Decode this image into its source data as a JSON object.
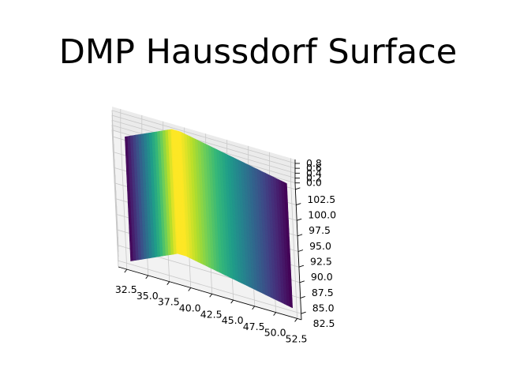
{
  "chart_data": {
    "type": "surface3d",
    "title": "DMP Haussdorf Surface",
    "xlabel": "",
    "ylabel": "",
    "zlabel": "",
    "x_ticks": [
      "32.5",
      "35.0",
      "37.5",
      "40.0",
      "42.5",
      "45.0",
      "47.5",
      "50.0",
      "52.5"
    ],
    "y_ticks": [
      "82.5",
      "85.0",
      "87.5",
      "90.0",
      "92.5",
      "95.0",
      "97.5",
      "100.0",
      "102.5"
    ],
    "z_ticks": [
      "0.0",
      "0.2",
      "0.4",
      "0.6",
      "0.8"
    ],
    "xlim": [
      31.5,
      53
    ],
    "ylim": [
      81.5,
      103.5
    ],
    "zlim": [
      -0.01,
      0.96
    ],
    "x_range": [
      33,
      52
    ],
    "y_range": [
      83,
      103
    ],
    "ridge": {
      "x_min": 33,
      "x_peak_start": 38.5,
      "x_peak_end": 39.5,
      "x_max": 52,
      "peak_value": 0.86,
      "edge_value": 0.0
    },
    "colormap": "viridis",
    "grid": true
  }
}
